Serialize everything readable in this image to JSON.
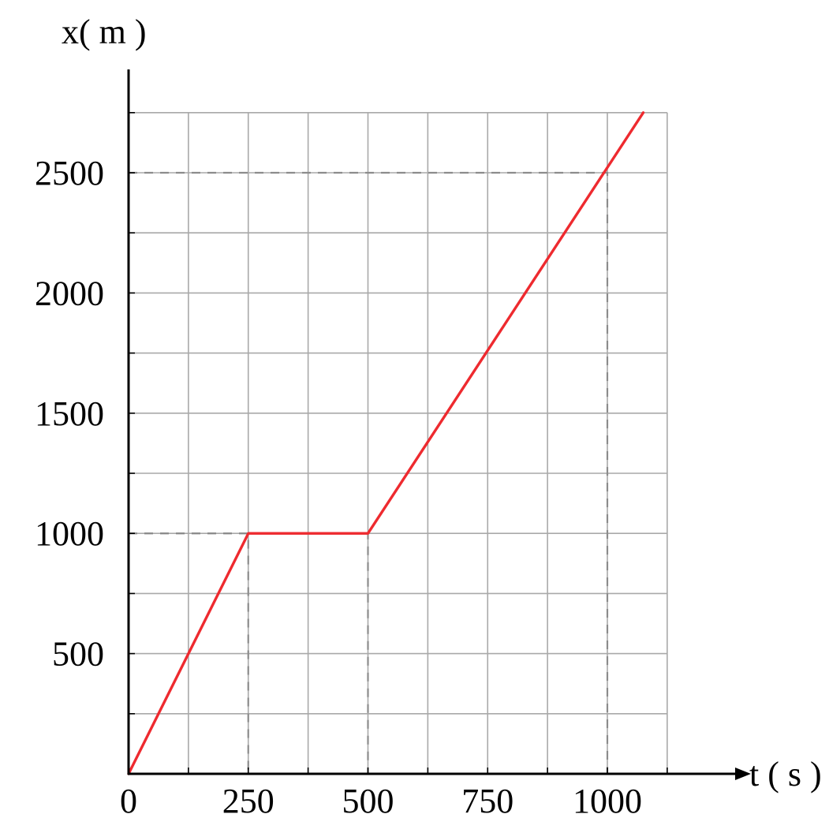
{
  "chart_data": {
    "type": "line",
    "title": "",
    "xlabel": "t ( s )",
    "ylabel": "x( m )",
    "xlim": [
      0,
      1000
    ],
    "ylim": [
      0,
      2750
    ],
    "x_grid_step": 125,
    "y_grid_step": 250,
    "grid": true,
    "x_ticks": [
      0,
      250,
      500,
      750,
      1000
    ],
    "x_tick_labels": [
      "0",
      "250",
      "500",
      "750",
      "1000"
    ],
    "y_ticks": [
      500,
      1000,
      1500,
      2000,
      2500
    ],
    "y_tick_labels": [
      "500",
      "1000",
      "1500",
      "2000",
      "2500"
    ],
    "series": [
      {
        "color": "#ee2a2f",
        "x": [
          0,
          250,
          500,
          1075
        ],
        "y": [
          0,
          1000,
          1000,
          2750
        ]
      }
    ],
    "reference_lines": [
      {
        "t": 250,
        "x": 1000
      },
      {
        "t": 500,
        "x": 1000
      },
      {
        "t": 1000,
        "x": 2500
      }
    ]
  }
}
